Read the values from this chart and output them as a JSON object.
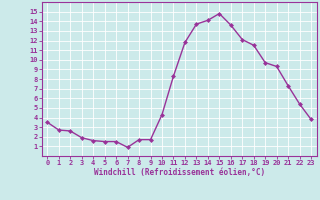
{
  "x": [
    0,
    1,
    2,
    3,
    4,
    5,
    6,
    7,
    8,
    9,
    10,
    11,
    12,
    13,
    14,
    15,
    16,
    17,
    18,
    19,
    20,
    21,
    22,
    23
  ],
  "y": [
    3.5,
    2.7,
    2.6,
    1.9,
    1.6,
    1.5,
    1.5,
    0.9,
    1.7,
    1.7,
    4.3,
    8.3,
    11.8,
    13.7,
    14.1,
    14.8,
    13.6,
    12.1,
    11.5,
    9.7,
    9.3,
    7.3,
    5.4,
    3.8
  ],
  "line_color": "#993399",
  "marker": "D",
  "markersize": 2.0,
  "linewidth": 1.0,
  "xlim": [
    -0.5,
    23.5
  ],
  "ylim": [
    0,
    16
  ],
  "yticks": [
    1,
    2,
    3,
    4,
    5,
    6,
    7,
    8,
    9,
    10,
    11,
    12,
    13,
    14,
    15
  ],
  "xticks": [
    0,
    1,
    2,
    3,
    4,
    5,
    6,
    7,
    8,
    9,
    10,
    11,
    12,
    13,
    14,
    15,
    16,
    17,
    18,
    19,
    20,
    21,
    22,
    23
  ],
  "xlabel": "Windchill (Refroidissement éolien,°C)",
  "xlabel_fontsize": 5.5,
  "tick_fontsize": 5.0,
  "background_color": "#cceaea",
  "grid_color": "#ffffff",
  "axis_color": "#993399",
  "tick_color": "#993399",
  "label_color": "#993399"
}
